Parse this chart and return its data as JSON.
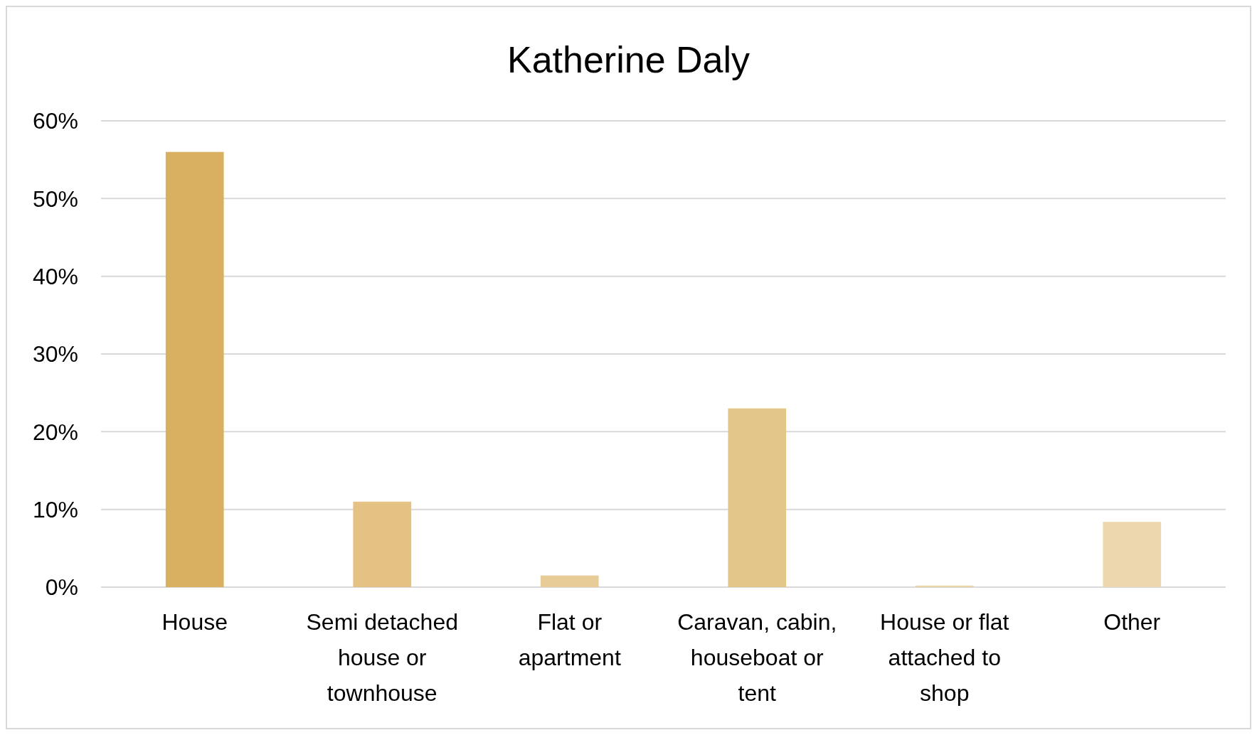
{
  "chart_data": {
    "type": "bar",
    "title": "Katherine Daly",
    "categories": [
      "House",
      "Semi detached house or townhouse",
      "Flat or apartment",
      "Caravan, cabin, houseboat or tent",
      "House or flat attached to shop",
      "Other"
    ],
    "values": [
      56,
      11,
      1.5,
      23,
      0.2,
      8.4
    ],
    "colors": [
      "#d9b062",
      "#e3c283",
      "#e8cc98",
      "#e3c68a",
      "#e9d2a4",
      "#ecd7ae"
    ],
    "ylim": [
      0,
      60
    ],
    "yticks": [
      {
        "value": 0,
        "label": "0%"
      },
      {
        "value": 10,
        "label": "10%"
      },
      {
        "value": 20,
        "label": "20%"
      },
      {
        "value": 30,
        "label": "30%"
      },
      {
        "value": 40,
        "label": "40%"
      },
      {
        "value": 50,
        "label": "50%"
      },
      {
        "value": 60,
        "label": "60%"
      }
    ],
    "grid": "y"
  }
}
